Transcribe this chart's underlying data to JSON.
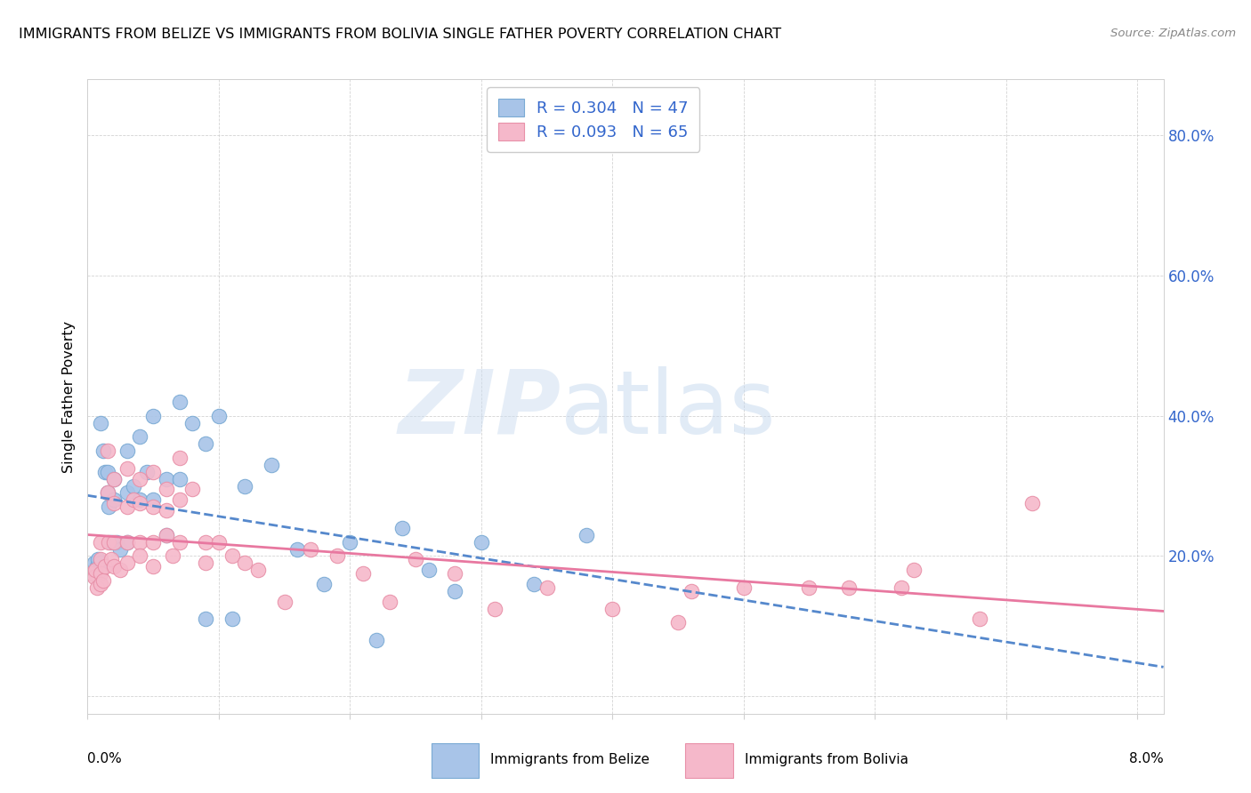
{
  "title": "IMMIGRANTS FROM BELIZE VS IMMIGRANTS FROM BOLIVIA SINGLE FATHER POVERTY CORRELATION CHART",
  "source": "Source: ZipAtlas.com",
  "ylabel": "Single Father Poverty",
  "y_ticks": [
    0.0,
    0.2,
    0.4,
    0.6,
    0.8
  ],
  "y_tick_labels_right": [
    "",
    "20.0%",
    "40.0%",
    "60.0%",
    "80.0%"
  ],
  "x_range": [
    0.0,
    0.082
  ],
  "y_range": [
    -0.025,
    0.88
  ],
  "belize_R": 0.304,
  "belize_N": 47,
  "bolivia_R": 0.093,
  "bolivia_N": 65,
  "belize_color": "#a8c4e8",
  "belize_edge": "#7aaad4",
  "bolivia_color": "#f5b8ca",
  "bolivia_edge": "#e890a8",
  "belize_trend_color": "#5588cc",
  "bolivia_trend_color": "#e878a0",
  "legend_color": "#3366cc",
  "belize_x": [
    0.0005,
    0.0006,
    0.0007,
    0.0008,
    0.001,
    0.001,
    0.001,
    0.0012,
    0.0013,
    0.0015,
    0.0015,
    0.0016,
    0.0018,
    0.002,
    0.002,
    0.0022,
    0.0025,
    0.003,
    0.003,
    0.003,
    0.0035,
    0.004,
    0.004,
    0.0045,
    0.005,
    0.005,
    0.006,
    0.006,
    0.007,
    0.007,
    0.008,
    0.009,
    0.009,
    0.01,
    0.011,
    0.012,
    0.014,
    0.016,
    0.018,
    0.02,
    0.022,
    0.024,
    0.026,
    0.028,
    0.03,
    0.034,
    0.038
  ],
  "belize_y": [
    0.19,
    0.175,
    0.185,
    0.195,
    0.39,
    0.19,
    0.18,
    0.35,
    0.32,
    0.32,
    0.29,
    0.27,
    0.22,
    0.31,
    0.28,
    0.22,
    0.21,
    0.35,
    0.29,
    0.22,
    0.3,
    0.37,
    0.28,
    0.32,
    0.4,
    0.28,
    0.31,
    0.23,
    0.42,
    0.31,
    0.39,
    0.36,
    0.11,
    0.4,
    0.11,
    0.3,
    0.33,
    0.21,
    0.16,
    0.22,
    0.08,
    0.24,
    0.18,
    0.15,
    0.22,
    0.16,
    0.23
  ],
  "bolivia_x": [
    0.0003,
    0.0005,
    0.0006,
    0.0007,
    0.001,
    0.001,
    0.001,
    0.001,
    0.0012,
    0.0013,
    0.0015,
    0.0015,
    0.0016,
    0.0018,
    0.002,
    0.002,
    0.002,
    0.002,
    0.0025,
    0.003,
    0.003,
    0.003,
    0.003,
    0.0035,
    0.004,
    0.004,
    0.004,
    0.004,
    0.005,
    0.005,
    0.005,
    0.005,
    0.006,
    0.006,
    0.006,
    0.0065,
    0.007,
    0.007,
    0.007,
    0.008,
    0.009,
    0.009,
    0.01,
    0.011,
    0.012,
    0.013,
    0.015,
    0.017,
    0.019,
    0.021,
    0.023,
    0.025,
    0.028,
    0.031,
    0.035,
    0.04,
    0.045,
    0.05,
    0.055,
    0.062,
    0.068,
    0.072,
    0.046,
    0.058,
    0.063
  ],
  "bolivia_y": [
    0.175,
    0.17,
    0.18,
    0.155,
    0.22,
    0.195,
    0.175,
    0.16,
    0.165,
    0.185,
    0.35,
    0.29,
    0.22,
    0.195,
    0.31,
    0.275,
    0.22,
    0.185,
    0.18,
    0.325,
    0.27,
    0.22,
    0.19,
    0.28,
    0.31,
    0.275,
    0.22,
    0.2,
    0.32,
    0.27,
    0.22,
    0.185,
    0.295,
    0.265,
    0.23,
    0.2,
    0.34,
    0.28,
    0.22,
    0.295,
    0.22,
    0.19,
    0.22,
    0.2,
    0.19,
    0.18,
    0.135,
    0.21,
    0.2,
    0.175,
    0.135,
    0.195,
    0.175,
    0.125,
    0.155,
    0.125,
    0.105,
    0.155,
    0.155,
    0.155,
    0.11,
    0.275,
    0.15,
    0.155,
    0.18
  ]
}
